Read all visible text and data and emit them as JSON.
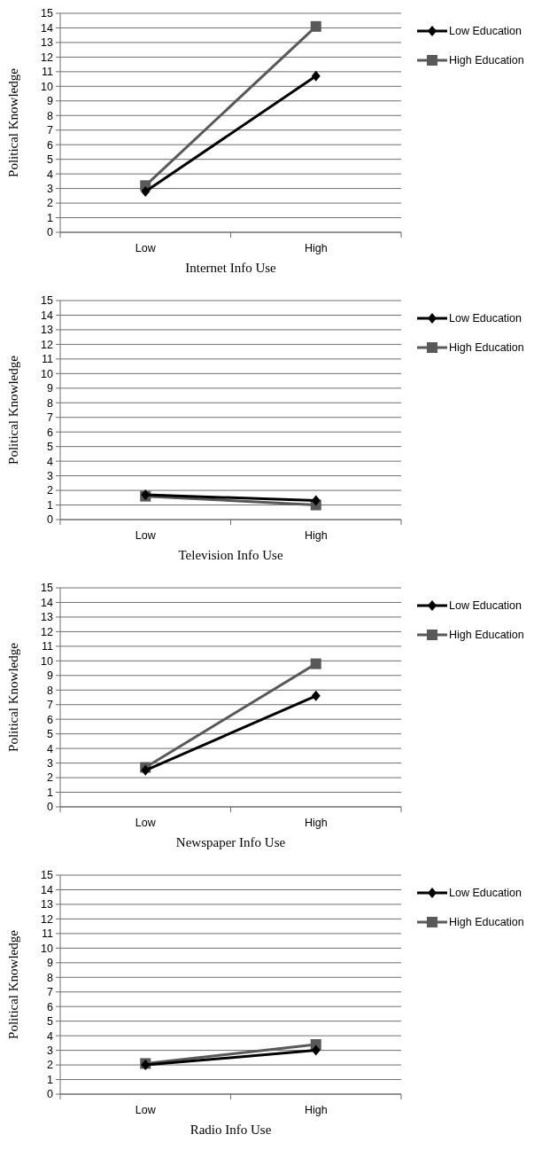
{
  "chart_data": [
    {
      "type": "line",
      "xlabel": "Internet Info Use",
      "ylabel": "Political Knowledge",
      "categories": [
        "Low",
        "High"
      ],
      "ylim": [
        0,
        15
      ],
      "yticks": [
        0,
        1,
        2,
        3,
        4,
        5,
        6,
        7,
        8,
        9,
        10,
        11,
        12,
        13,
        14,
        15
      ],
      "grid": "y",
      "legend": "top right",
      "series": [
        {
          "name": "Low Education",
          "color": "#000000",
          "marker": "diamond",
          "values": [
            2.8,
            10.7
          ]
        },
        {
          "name": "High Education",
          "color": "#595959",
          "marker": "square",
          "values": [
            3.2,
            14.1
          ]
        }
      ]
    },
    {
      "type": "line",
      "xlabel": "Television Info Use",
      "ylabel": "Political Knowledge",
      "categories": [
        "Low",
        "High"
      ],
      "ylim": [
        0,
        15
      ],
      "yticks": [
        0,
        1,
        2,
        3,
        4,
        5,
        6,
        7,
        8,
        9,
        10,
        11,
        12,
        13,
        14,
        15
      ],
      "grid": "y",
      "legend": "top right",
      "series": [
        {
          "name": "Low Education",
          "color": "#000000",
          "marker": "diamond",
          "values": [
            1.7,
            1.3
          ]
        },
        {
          "name": "High Education",
          "color": "#595959",
          "marker": "square",
          "values": [
            1.6,
            1.0
          ]
        }
      ]
    },
    {
      "type": "line",
      "xlabel": "Newspaper Info Use",
      "ylabel": "Political Knowledge",
      "categories": [
        "Low",
        "High"
      ],
      "ylim": [
        0,
        15
      ],
      "yticks": [
        0,
        1,
        2,
        3,
        4,
        5,
        6,
        7,
        8,
        9,
        10,
        11,
        12,
        13,
        14,
        15
      ],
      "grid": "y",
      "legend": "top right",
      "series": [
        {
          "name": "Low Education",
          "color": "#000000",
          "marker": "diamond",
          "values": [
            2.5,
            7.6
          ]
        },
        {
          "name": "High Education",
          "color": "#595959",
          "marker": "square",
          "values": [
            2.7,
            9.8
          ]
        }
      ]
    },
    {
      "type": "line",
      "xlabel": "Radio Info Use",
      "ylabel": "Political Knowledge",
      "categories": [
        "Low",
        "High"
      ],
      "ylim": [
        0,
        15
      ],
      "yticks": [
        0,
        1,
        2,
        3,
        4,
        5,
        6,
        7,
        8,
        9,
        10,
        11,
        12,
        13,
        14,
        15
      ],
      "grid": "y",
      "legend": "top right",
      "series": [
        {
          "name": "Low Education",
          "color": "#000000",
          "marker": "diamond",
          "values": [
            2.0,
            3.0
          ]
        },
        {
          "name": "High Education",
          "color": "#595959",
          "marker": "square",
          "values": [
            2.1,
            3.4
          ]
        }
      ]
    }
  ]
}
